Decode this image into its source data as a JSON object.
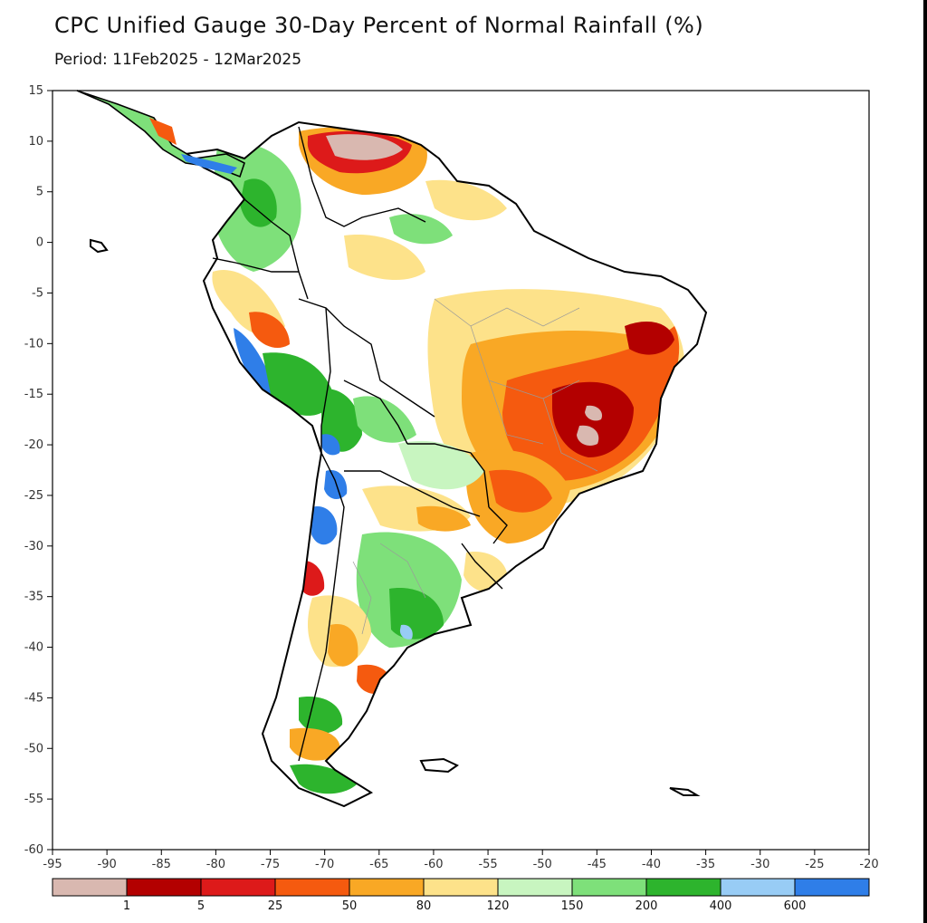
{
  "title": "CPC Unified Gauge 30-Day Percent of Normal Rainfall (%)",
  "subtitle": "Period: 11Feb2025 - 12Mar2025",
  "axes": {
    "lon_ticks": [
      "-95",
      "-90",
      "-85",
      "-80",
      "-75",
      "-70",
      "-65",
      "-60",
      "-55",
      "-50",
      "-45",
      "-40",
      "-35",
      "-30",
      "-25",
      "-20"
    ],
    "lat_ticks": [
      "15",
      "10",
      "5",
      "0",
      "-5",
      "-10",
      "-15",
      "-20",
      "-25",
      "-30",
      "-35",
      "-40",
      "-45",
      "-50",
      "-55",
      "-60"
    ],
    "lon_range": [
      -95,
      -20
    ],
    "lat_range": [
      -60,
      15
    ]
  },
  "colorbar": {
    "colors": [
      "#d9b8b0",
      "#b30000",
      "#dd1a1a",
      "#f55a0f",
      "#f9a825",
      "#fde28a",
      "#ffffff",
      "#c8f5c0",
      "#7ee07a",
      "#2db42d",
      "#98ccf5",
      "#2f7ee8"
    ],
    "labels": [
      "1",
      "5",
      "25",
      "50",
      "80",
      "120",
      "150",
      "200",
      "400",
      "600"
    ]
  },
  "legend": {
    "dry_colors": [
      "#d9b8b0",
      "#b30000",
      "#dd1a1a",
      "#f55a0f",
      "#f9a825",
      "#fde28a"
    ],
    "wet_colors": [
      "#c8f5c0",
      "#7ee07a",
      "#2db42d",
      "#98ccf5",
      "#2f7ee8"
    ]
  }
}
